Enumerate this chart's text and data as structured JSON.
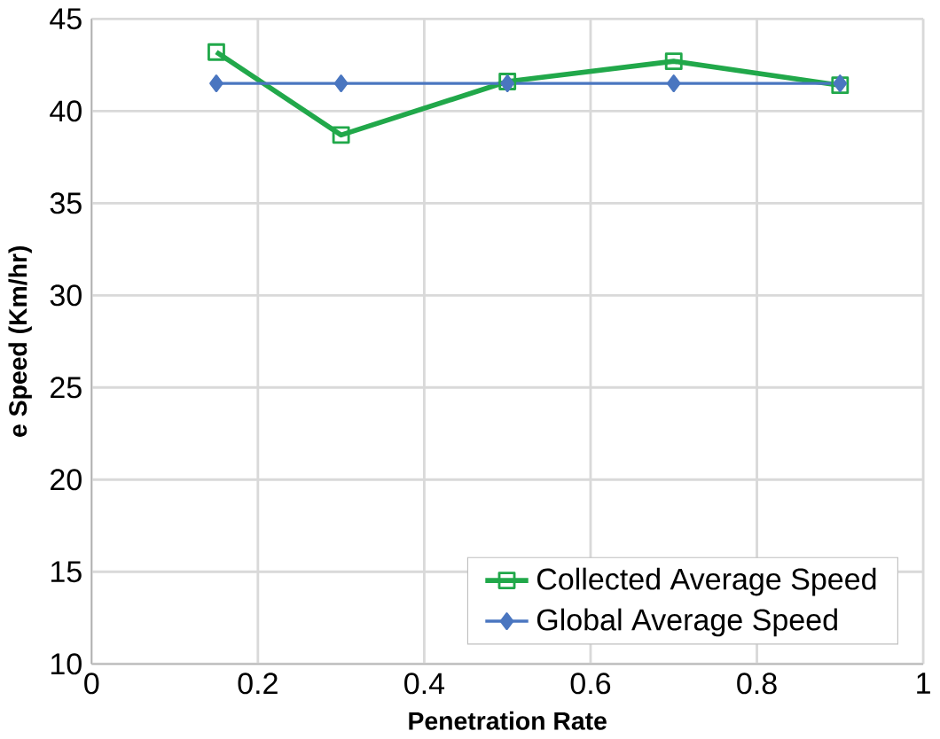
{
  "chart_data": {
    "type": "line",
    "xlabel": "Penetration Rate",
    "ylabel": "e Speed (Km/hr)",
    "x": [
      0.15,
      0.3,
      0.5,
      0.7,
      0.9
    ],
    "series": [
      {
        "name": "Collected Average Speed",
        "color": "#21a84a",
        "values": [
          43.2,
          38.7,
          41.6,
          42.7,
          41.4
        ],
        "marker": "square"
      },
      {
        "name": "Global Average Speed",
        "color": "#4a76c0",
        "values": [
          41.5,
          41.5,
          41.5,
          41.5,
          41.5
        ],
        "marker": "diamond"
      }
    ],
    "xlim": [
      0,
      1
    ],
    "xticks": [
      0,
      0.2,
      0.4,
      0.6,
      0.8,
      1
    ],
    "ylim": [
      10,
      45
    ],
    "yticks": [
      10,
      15,
      20,
      25,
      30,
      35,
      40,
      45
    ],
    "grid": true,
    "legend": "bottom right",
    "line_style": "solid"
  }
}
